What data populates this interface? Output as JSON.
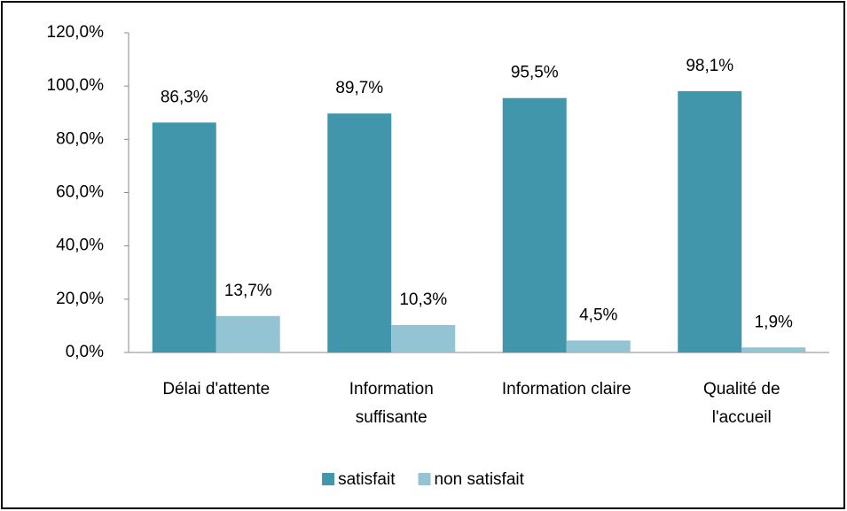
{
  "chart_data": {
    "type": "bar",
    "categories": [
      "Délai d'attente",
      "Information\nsuffisante",
      "Information claire",
      "Qualité de\nl'accueil"
    ],
    "series": [
      {
        "name": "satisfait",
        "color": "#4196ab",
        "values": [
          86.3,
          89.7,
          95.5,
          98.1
        ],
        "value_labels": [
          "86,3%",
          "89,7%",
          "95,5%",
          "98,1%"
        ]
      },
      {
        "name": "non satisfait",
        "color": "#93c4d4",
        "values": [
          13.7,
          10.3,
          4.5,
          1.9
        ],
        "value_labels": [
          "13,7%",
          "10,3%",
          "4,5%",
          "1,9%"
        ]
      }
    ],
    "ylim": [
      0,
      120
    ],
    "yticks": [
      {
        "value": 0,
        "label": "0,0%"
      },
      {
        "value": 20,
        "label": "20,0%"
      },
      {
        "value": 40,
        "label": "40,0%"
      },
      {
        "value": 60,
        "label": "60,0%"
      },
      {
        "value": 80,
        "label": "80,0%"
      },
      {
        "value": 100,
        "label": "100,0%"
      },
      {
        "value": 120,
        "label": "120,0%"
      }
    ],
    "grid": false,
    "legend": "bottom"
  }
}
